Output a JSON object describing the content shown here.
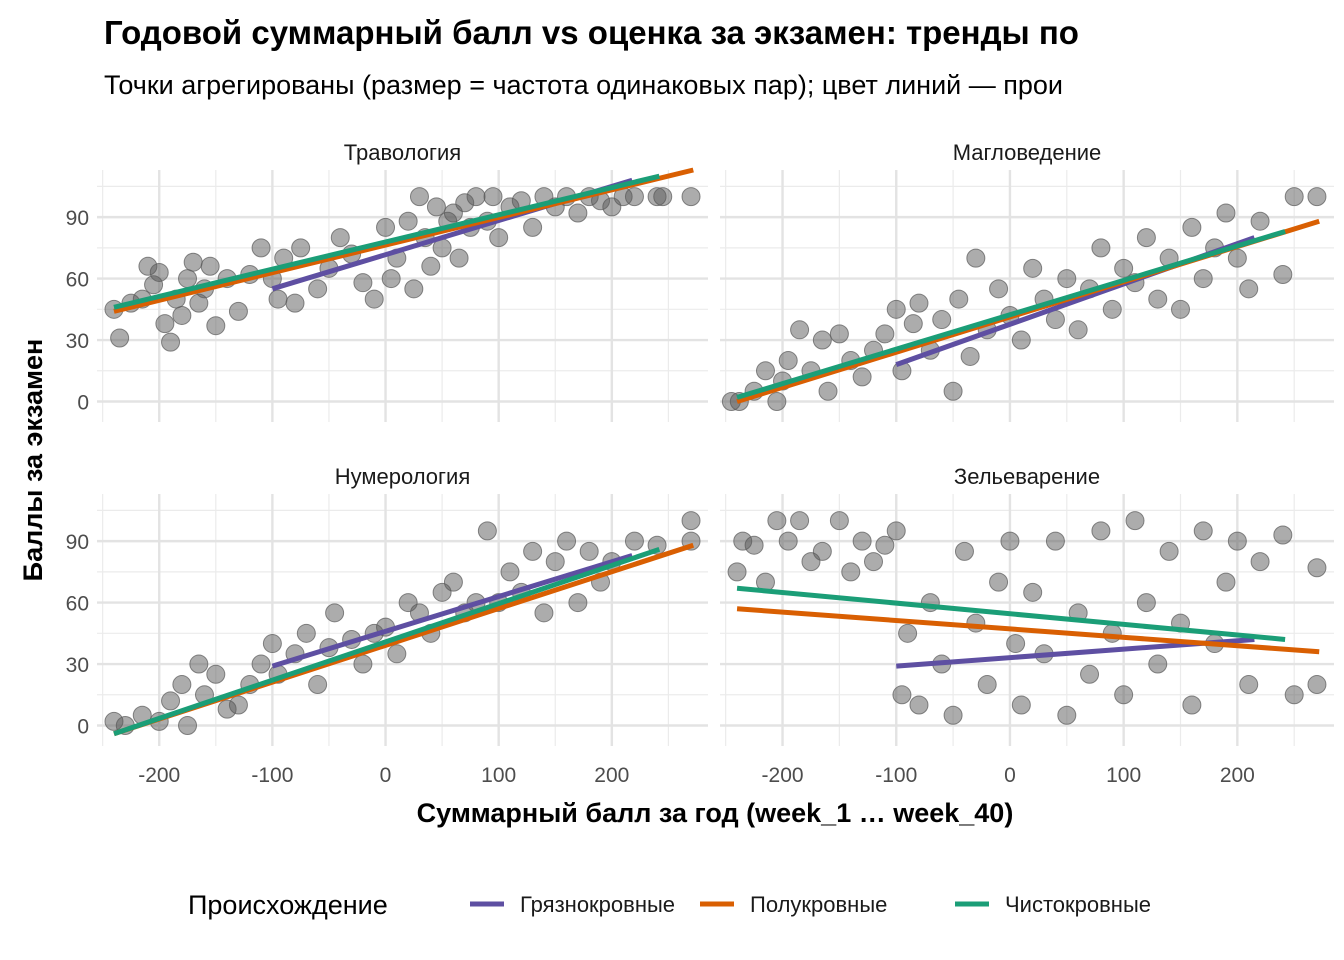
{
  "chart_data": {
    "type": "scatter",
    "title": "Годовой суммарный балл vs оценка за экзамен: тренды по",
    "subtitle": "Точки агрегированы (размер = частота одинаковых пар); цвет линий — прои",
    "xlabel": "Суммарный балл за год (week_1 … week_40)",
    "ylabel": "Баллы за экзамен",
    "xlim": [
      -255,
      285
    ],
    "ylim": [
      -10,
      113
    ],
    "xticks": [
      -200,
      -100,
      0,
      100,
      200
    ],
    "yticks": [
      0,
      30,
      60,
      90
    ],
    "grid": true,
    "legend": {
      "title": "Происхождение",
      "position": "bottom",
      "entries": [
        {
          "name": "Грязнокровные",
          "color": "#5e4fa2"
        },
        {
          "name": "Полукровные",
          "color": "#d95f02"
        },
        {
          "name": "Чистокровные",
          "color": "#1b9e77"
        }
      ]
    },
    "point_color": "#595959",
    "facets": [
      {
        "name": "Травология",
        "points": [
          [
            -240,
            45
          ],
          [
            -235,
            31
          ],
          [
            -225,
            48
          ],
          [
            -215,
            50
          ],
          [
            -210,
            66
          ],
          [
            -205,
            57
          ],
          [
            -200,
            63
          ],
          [
            -195,
            38
          ],
          [
            -190,
            29
          ],
          [
            -185,
            50
          ],
          [
            -180,
            42
          ],
          [
            -175,
            60
          ],
          [
            -170,
            68
          ],
          [
            -165,
            48
          ],
          [
            -160,
            55
          ],
          [
            -155,
            66
          ],
          [
            -150,
            37
          ],
          [
            -140,
            60
          ],
          [
            -130,
            44
          ],
          [
            -120,
            62
          ],
          [
            -110,
            75
          ],
          [
            -100,
            60
          ],
          [
            -95,
            50
          ],
          [
            -90,
            70
          ],
          [
            -80,
            48
          ],
          [
            -75,
            75
          ],
          [
            -60,
            55
          ],
          [
            -50,
            65
          ],
          [
            -40,
            80
          ],
          [
            -30,
            72
          ],
          [
            -20,
            58
          ],
          [
            -10,
            50
          ],
          [
            0,
            85
          ],
          [
            5,
            60
          ],
          [
            10,
            70
          ],
          [
            20,
            88
          ],
          [
            25,
            55
          ],
          [
            30,
            100
          ],
          [
            35,
            80
          ],
          [
            40,
            66
          ],
          [
            45,
            95
          ],
          [
            50,
            75
          ],
          [
            55,
            88
          ],
          [
            60,
            92
          ],
          [
            65,
            70
          ],
          [
            70,
            97
          ],
          [
            75,
            85
          ],
          [
            80,
            100
          ],
          [
            90,
            88
          ],
          [
            95,
            100
          ],
          [
            100,
            80
          ],
          [
            110,
            95
          ],
          [
            120,
            98
          ],
          [
            130,
            85
          ],
          [
            140,
            100
          ],
          [
            150,
            95
          ],
          [
            160,
            100
          ],
          [
            170,
            92
          ],
          [
            180,
            100
          ],
          [
            190,
            98
          ],
          [
            200,
            95
          ],
          [
            210,
            100
          ],
          [
            220,
            100
          ],
          [
            240,
            100
          ],
          [
            245,
            100
          ],
          [
            270,
            100
          ]
        ],
        "lines": [
          {
            "series": "Грязнокровные",
            "x": [
              -100,
              218
            ],
            "y": [
              55,
              108
            ]
          },
          {
            "series": "Полукровные",
            "x": [
              -240,
              272
            ],
            "y": [
              44,
              113
            ]
          },
          {
            "series": "Чистокровные",
            "x": [
              -240,
              242
            ],
            "y": [
              46,
              110
            ]
          }
        ]
      },
      {
        "name": "Магловедение",
        "points": [
          [
            -245,
            0
          ],
          [
            -238,
            0
          ],
          [
            -225,
            5
          ],
          [
            -215,
            15
          ],
          [
            -205,
            0
          ],
          [
            -200,
            10
          ],
          [
            -195,
            20
          ],
          [
            -185,
            35
          ],
          [
            -175,
            15
          ],
          [
            -165,
            30
          ],
          [
            -160,
            5
          ],
          [
            -150,
            33
          ],
          [
            -140,
            20
          ],
          [
            -130,
            12
          ],
          [
            -120,
            25
          ],
          [
            -110,
            33
          ],
          [
            -100,
            45
          ],
          [
            -95,
            15
          ],
          [
            -85,
            38
          ],
          [
            -80,
            48
          ],
          [
            -70,
            25
          ],
          [
            -60,
            40
          ],
          [
            -50,
            5
          ],
          [
            -45,
            50
          ],
          [
            -35,
            22
          ],
          [
            -30,
            70
          ],
          [
            -20,
            35
          ],
          [
            -10,
            55
          ],
          [
            0,
            42
          ],
          [
            10,
            30
          ],
          [
            20,
            65
          ],
          [
            30,
            50
          ],
          [
            40,
            40
          ],
          [
            50,
            60
          ],
          [
            60,
            35
          ],
          [
            70,
            55
          ],
          [
            80,
            75
          ],
          [
            90,
            45
          ],
          [
            100,
            65
          ],
          [
            110,
            58
          ],
          [
            120,
            80
          ],
          [
            130,
            50
          ],
          [
            140,
            70
          ],
          [
            150,
            45
          ],
          [
            160,
            85
          ],
          [
            170,
            60
          ],
          [
            180,
            75
          ],
          [
            190,
            92
          ],
          [
            200,
            70
          ],
          [
            210,
            55
          ],
          [
            220,
            88
          ],
          [
            240,
            62
          ],
          [
            250,
            100
          ],
          [
            270,
            100
          ]
        ],
        "lines": [
          {
            "series": "Грязнокровные",
            "x": [
              -100,
              215
            ],
            "y": [
              18,
              80
            ]
          },
          {
            "series": "Полукровные",
            "x": [
              -240,
              272
            ],
            "y": [
              0,
              88
            ]
          },
          {
            "series": "Чистокровные",
            "x": [
              -240,
              242
            ],
            "y": [
              2,
              83
            ]
          }
        ]
      },
      {
        "name": "Нумерология",
        "points": [
          [
            -240,
            2
          ],
          [
            -230,
            0
          ],
          [
            -215,
            5
          ],
          [
            -200,
            2
          ],
          [
            -190,
            12
          ],
          [
            -180,
            20
          ],
          [
            -175,
            0
          ],
          [
            -165,
            30
          ],
          [
            -160,
            15
          ],
          [
            -150,
            25
          ],
          [
            -140,
            8
          ],
          [
            -130,
            10
          ],
          [
            -120,
            20
          ],
          [
            -110,
            30
          ],
          [
            -100,
            40
          ],
          [
            -95,
            25
          ],
          [
            -80,
            35
          ],
          [
            -70,
            45
          ],
          [
            -60,
            20
          ],
          [
            -50,
            38
          ],
          [
            -45,
            55
          ],
          [
            -30,
            42
          ],
          [
            -20,
            30
          ],
          [
            -10,
            45
          ],
          [
            0,
            48
          ],
          [
            10,
            35
          ],
          [
            20,
            60
          ],
          [
            30,
            55
          ],
          [
            40,
            45
          ],
          [
            50,
            65
          ],
          [
            60,
            70
          ],
          [
            70,
            55
          ],
          [
            80,
            60
          ],
          [
            90,
            95
          ],
          [
            100,
            60
          ],
          [
            110,
            75
          ],
          [
            120,
            65
          ],
          [
            130,
            85
          ],
          [
            140,
            55
          ],
          [
            150,
            80
          ],
          [
            160,
            90
          ],
          [
            170,
            60
          ],
          [
            180,
            85
          ],
          [
            190,
            70
          ],
          [
            200,
            80
          ],
          [
            220,
            90
          ],
          [
            240,
            88
          ],
          [
            270,
            100
          ],
          [
            270,
            90
          ]
        ],
        "lines": [
          {
            "series": "Грязнокровные",
            "x": [
              -100,
              218
            ],
            "y": [
              29,
              83
            ]
          },
          {
            "series": "Полукровные",
            "x": [
              -240,
              272
            ],
            "y": [
              -4,
              88
            ]
          },
          {
            "series": "Чистокровные",
            "x": [
              -240,
              242
            ],
            "y": [
              -4,
              86
            ]
          }
        ]
      },
      {
        "name": "Зельеварение",
        "points": [
          [
            -240,
            75
          ],
          [
            -235,
            90
          ],
          [
            -225,
            88
          ],
          [
            -215,
            70
          ],
          [
            -205,
            100
          ],
          [
            -195,
            90
          ],
          [
            -185,
            100
          ],
          [
            -175,
            80
          ],
          [
            -165,
            85
          ],
          [
            -150,
            100
          ],
          [
            -140,
            75
          ],
          [
            -130,
            90
          ],
          [
            -120,
            80
          ],
          [
            -110,
            88
          ],
          [
            -100,
            95
          ],
          [
            -95,
            15
          ],
          [
            -90,
            45
          ],
          [
            -80,
            10
          ],
          [
            -70,
            60
          ],
          [
            -60,
            30
          ],
          [
            -50,
            5
          ],
          [
            -40,
            85
          ],
          [
            -30,
            50
          ],
          [
            -20,
            20
          ],
          [
            -10,
            70
          ],
          [
            0,
            90
          ],
          [
            5,
            40
          ],
          [
            10,
            10
          ],
          [
            20,
            65
          ],
          [
            30,
            35
          ],
          [
            40,
            90
          ],
          [
            50,
            5
          ],
          [
            60,
            55
          ],
          [
            70,
            25
          ],
          [
            80,
            95
          ],
          [
            90,
            45
          ],
          [
            100,
            15
          ],
          [
            110,
            100
          ],
          [
            120,
            60
          ],
          [
            130,
            30
          ],
          [
            140,
            85
          ],
          [
            150,
            50
          ],
          [
            160,
            10
          ],
          [
            170,
            95
          ],
          [
            180,
            40
          ],
          [
            190,
            70
          ],
          [
            200,
            90
          ],
          [
            210,
            20
          ],
          [
            220,
            80
          ],
          [
            240,
            93
          ],
          [
            250,
            15
          ],
          [
            270,
            77
          ],
          [
            270,
            20
          ]
        ],
        "lines": [
          {
            "series": "Грязнокровные",
            "x": [
              -100,
              215
            ],
            "y": [
              29,
              42
            ]
          },
          {
            "series": "Полукровные",
            "x": [
              -240,
              272
            ],
            "y": [
              57,
              36
            ]
          },
          {
            "series": "Чистокровные",
            "x": [
              -240,
              242
            ],
            "y": [
              67,
              42
            ]
          }
        ]
      }
    ]
  }
}
